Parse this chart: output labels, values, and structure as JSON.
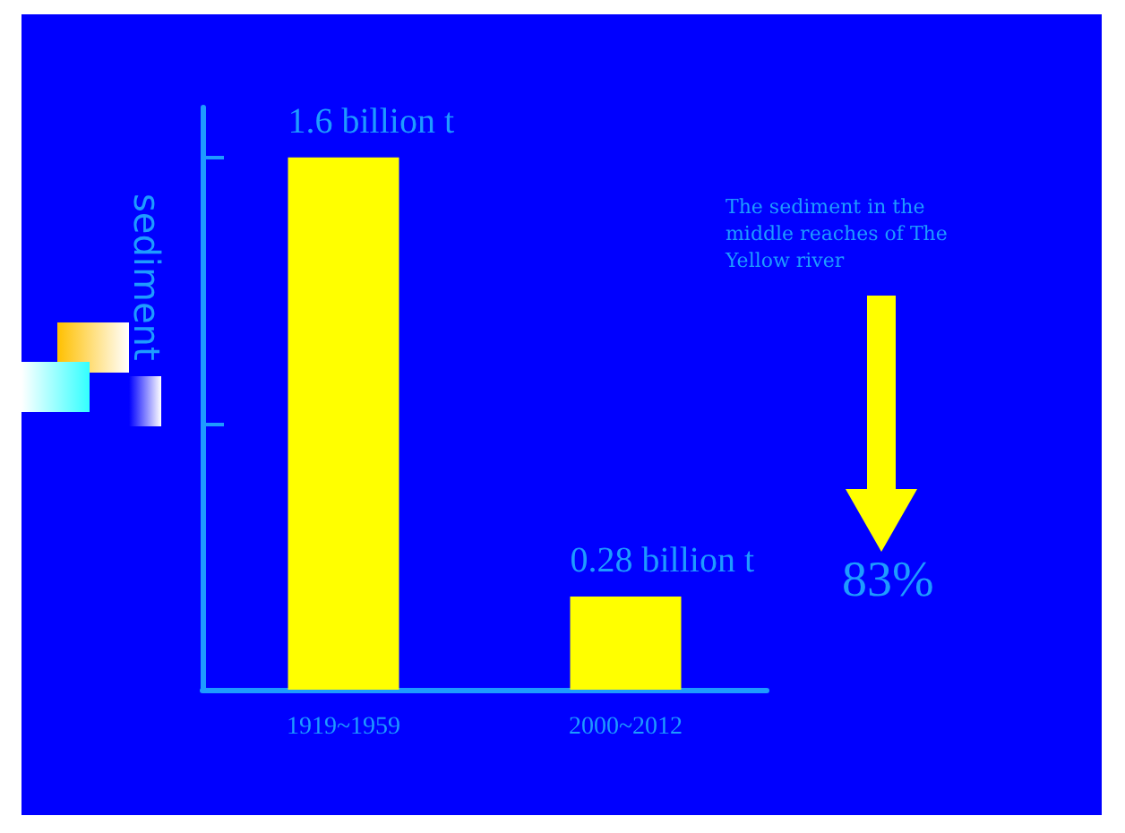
{
  "chart_data": {
    "type": "bar",
    "ylabel": "sediment",
    "categories": [
      "1919~1959",
      "2000~2012"
    ],
    "values": [
      1.6,
      0.28
    ],
    "value_labels": [
      "1.6 billion t",
      "0.28 billion t"
    ],
    "color": "#ffff00",
    "ylim": [
      0,
      1.75
    ],
    "yticks": [
      {
        "value": 0.8,
        "label": null
      },
      {
        "value": 1.6,
        "label": null
      }
    ],
    "tick_labels": "x",
    "grid": false,
    "annotations": [
      "The sediment in the middle reaches of The Yellow river",
      "83%"
    ]
  }
}
